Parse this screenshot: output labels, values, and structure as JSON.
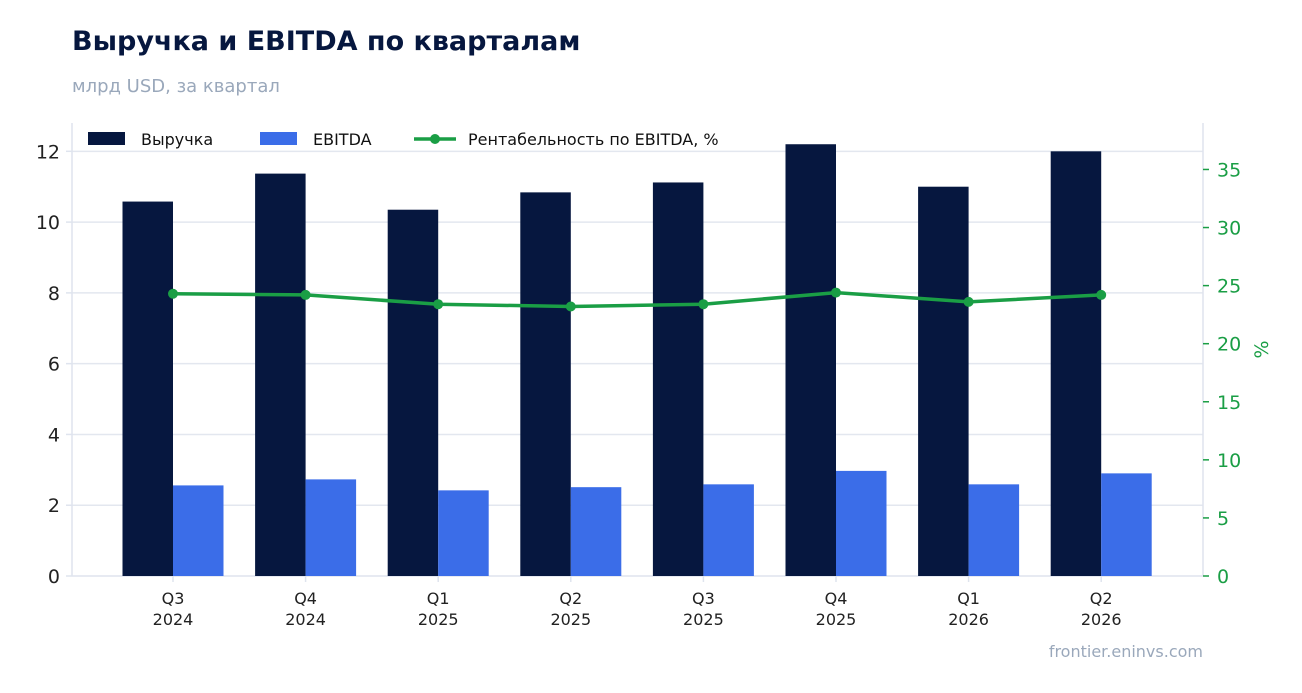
{
  "chart_data": {
    "type": "bar",
    "title": "Выручка и EBITDA по кварталам",
    "subtitle": "млрд USD, за квартал",
    "source": "frontier.eninvs.com",
    "categories": [
      [
        "Q3",
        "2024"
      ],
      [
        "Q4",
        "2024"
      ],
      [
        "Q1",
        "2025"
      ],
      [
        "Q2",
        "2025"
      ],
      [
        "Q3",
        "2025"
      ],
      [
        "Q4",
        "2025"
      ],
      [
        "Q1",
        "2026"
      ],
      [
        "Q2",
        "2026"
      ]
    ],
    "series": [
      {
        "name": "Выручка",
        "type": "bar",
        "axis": "left",
        "color": "#06173f",
        "values": [
          10.58,
          11.37,
          10.35,
          10.84,
          11.12,
          12.2,
          11.0,
          12.0
        ]
      },
      {
        "name": "EBITDA",
        "type": "bar",
        "axis": "left",
        "color": "#3b6de8",
        "values": [
          2.56,
          2.73,
          2.42,
          2.51,
          2.59,
          2.97,
          2.59,
          2.9
        ]
      },
      {
        "name": "Рентабельность по EBITDA, %",
        "type": "line",
        "axis": "right",
        "color": "#1a9e45",
        "values": [
          24.3,
          24.2,
          23.4,
          23.2,
          23.4,
          24.4,
          23.6,
          24.2
        ]
      }
    ],
    "y_left": {
      "min": 0,
      "max": 12.8,
      "ticks": [
        0,
        2,
        4,
        6,
        8,
        10,
        12
      ]
    },
    "y_right": {
      "label": "%",
      "min": 0,
      "max": 39,
      "ticks": [
        0,
        5,
        10,
        15,
        20,
        25,
        30,
        35
      ]
    },
    "grid": true,
    "legend": "top-left"
  }
}
